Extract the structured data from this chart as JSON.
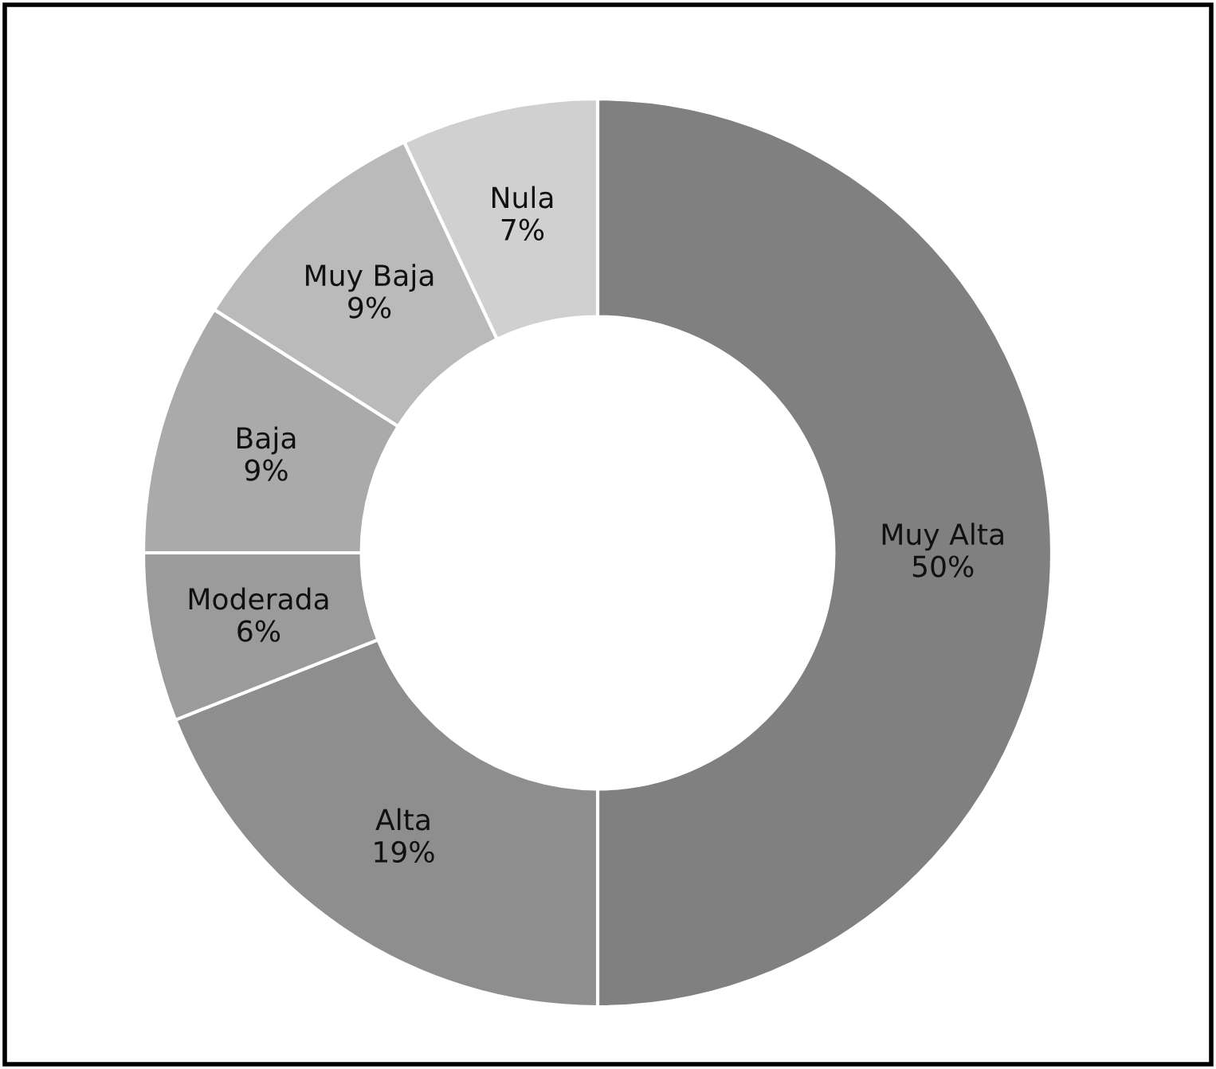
{
  "chart_data": {
    "type": "donut",
    "categories": [
      "Muy Alta",
      "Alta",
      "Moderada",
      "Baja",
      "Muy Baja",
      "Nula"
    ],
    "values": [
      50,
      19,
      6,
      9,
      9,
      7
    ],
    "value_labels": [
      "50%",
      "19%",
      "6%",
      "9%",
      "9%",
      "7%"
    ],
    "colors": [
      "#808080",
      "#8e8e8e",
      "#9b9b9b",
      "#aaaaaa",
      "#bababa",
      "#d0d0d0"
    ],
    "legend": false
  }
}
